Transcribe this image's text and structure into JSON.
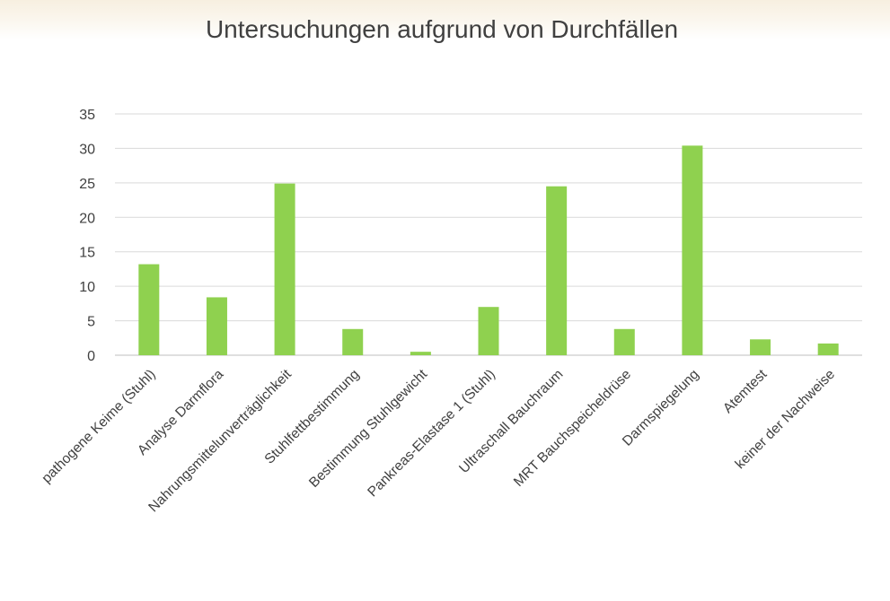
{
  "chart_data": {
    "type": "bar",
    "title": "Untersuchungen aufgrund von Durchfällen",
    "xlabel": "",
    "ylabel": "",
    "ylim": [
      0,
      35
    ],
    "yticks": [
      0,
      5,
      10,
      15,
      20,
      25,
      30,
      35
    ],
    "grid": true,
    "legend": "none",
    "bar_color": "#8fd14f",
    "categories": [
      "pathogene Keime (Stuhl)",
      "Analyse Darmflora",
      "Nahrungsmittelunverträglichkeit",
      "Stuhlfettbestimmung",
      "Bestimmung Stuhlgewicht",
      "Pankreas-Elastase 1 (Stuhl)",
      "Ultraschall Bauchraum",
      "MRT Bauchspeicheldrüse",
      "Darmspiegelung",
      "Atemtest",
      "keiner der Nachweise"
    ],
    "values": [
      13.2,
      8.4,
      24.9,
      3.8,
      0.5,
      7.0,
      24.5,
      3.8,
      30.4,
      2.3,
      1.7
    ]
  }
}
